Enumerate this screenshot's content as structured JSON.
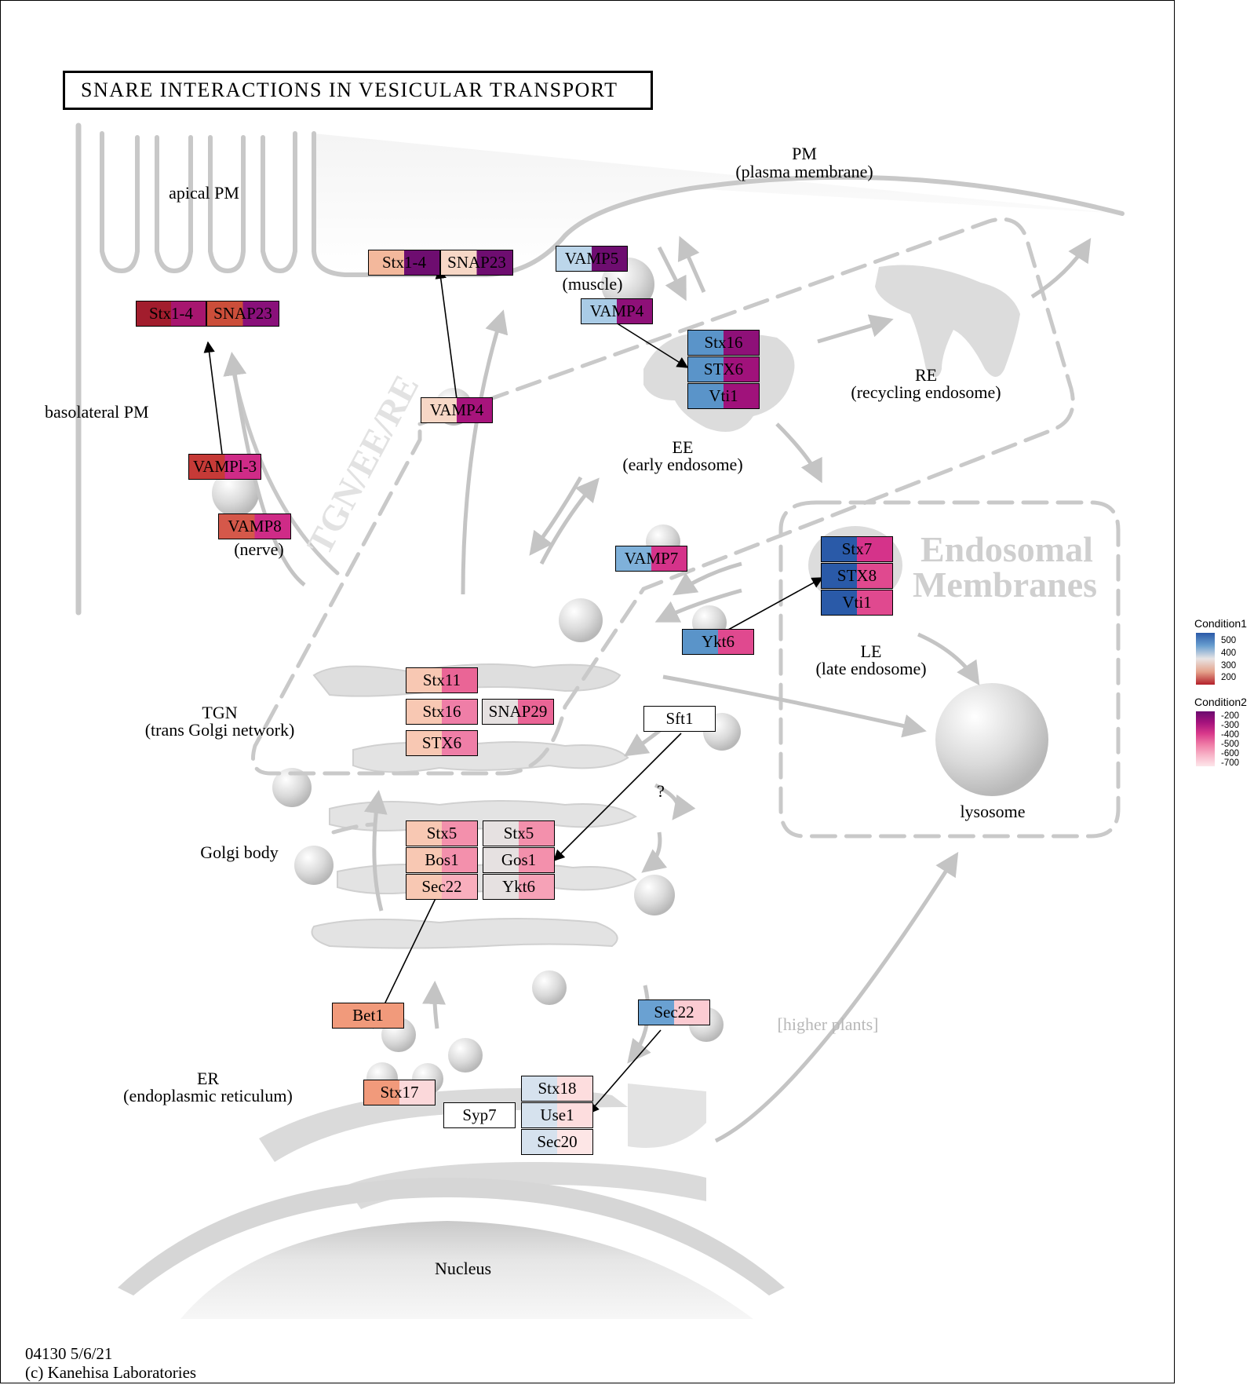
{
  "title": "SNARE INTERACTIONS IN VESICULAR TRANSPORT",
  "labels": {
    "pm": "PM",
    "pm_full": "(plasma membrane)",
    "apical_pm": "apical PM",
    "basolateral_pm": "basolateral PM",
    "muscle": "(muscle)",
    "nerve": "(nerve)",
    "re": "RE",
    "re_full": "(recycling endosome)",
    "ee": "EE",
    "ee_full": "(early endosome)",
    "tgn": "TGN",
    "tgn_full": "(trans Golgi network)",
    "le": "LE",
    "le_full": "(late endosome)",
    "lysosome": "lysosome",
    "golgi": "Golgi body",
    "er": "ER",
    "er_full": "(endoplasmic reticulum)",
    "nucleus": "Nucleus",
    "higher_plants": "[higher plants]",
    "question": "?",
    "endosomal_1": "Endosomal",
    "endosomal_2": "Membranes",
    "tgn_ee_re": "TGN/EE/RE"
  },
  "footer": {
    "line1": "04130 5/6/21",
    "line2": "(c) Kanehisa Laboratories"
  },
  "legend": {
    "condition1": {
      "title": "Condition1",
      "ticks": [
        "500",
        "400",
        "300",
        "200"
      ],
      "colors": [
        "#2a5aa8",
        "#6a9fd0",
        "#e8e4e4",
        "#e5a38c",
        "#b3202a"
      ]
    },
    "condition2": {
      "title": "Condition2",
      "ticks": [
        "-200",
        "-300",
        "-400",
        "-500",
        "-600",
        "-700"
      ],
      "colors": [
        "#6b0b6e",
        "#a4127c",
        "#d8388a",
        "#ef7ba6",
        "#f8b5c9",
        "#fde6ea"
      ]
    }
  },
  "genes": [
    {
      "label": "Stx1-4",
      "c1": "#a21d2d",
      "c2": "#a7166f"
    },
    {
      "label": "SNAP23",
      "c1": "#cc4e3a",
      "c2": "#89107a"
    },
    {
      "label": "Stx1-4",
      "c1": "#f3b89c",
      "c2": "#6e0d70"
    },
    {
      "label": "SNAP23",
      "c1": "#f7d7c6",
      "c2": "#6e0d70"
    },
    {
      "label": "VAMP5",
      "c1": "#bcd6ea",
      "c2": "#6e0d70"
    },
    {
      "label": "VAMP4",
      "c1": "#a9cbe6",
      "c2": "#8e1078"
    },
    {
      "label": "Stx16",
      "c1": "#5a94c9",
      "c2": "#8e1078"
    },
    {
      "label": "STX6",
      "c1": "#5a94c9",
      "c2": "#a0127b"
    },
    {
      "label": "Vti1",
      "c1": "#5a94c9",
      "c2": "#a0127b"
    },
    {
      "label": "VAMP4",
      "c1": "#f7d7c6",
      "c2": "#a7147c"
    },
    {
      "label": "VAMPl-3",
      "c1": "#c63a37",
      "c2": "#cf2b87"
    },
    {
      "label": "VAMP8",
      "c1": "#d5584a",
      "c2": "#cf2b87"
    },
    {
      "label": "VAMP7",
      "c1": "#7fb1da",
      "c2": "#d5338a"
    },
    {
      "label": "Stx7",
      "c1": "#2a5aa8",
      "c2": "#d5338a"
    },
    {
      "label": "STX8",
      "c1": "#2a5aa8",
      "c2": "#e0498f"
    },
    {
      "label": "Vti1",
      "c1": "#2a5aa8",
      "c2": "#e0498f"
    },
    {
      "label": "Ykt6",
      "c1": "#5a94c9",
      "c2": "#e0498f"
    },
    {
      "label": "Stx11",
      "c1": "#f8c8b3",
      "c2": "#ea6596"
    },
    {
      "label": "Stx16",
      "c1": "#f8c8b3",
      "c2": "#ef7ea7"
    },
    {
      "label": "SNAP29",
      "c1": "#e6e1e1",
      "c2": "#ea6596"
    },
    {
      "label": "STX6",
      "c1": "#f8c8b3",
      "c2": "#ef7ea7"
    },
    {
      "label": "Sft1",
      "c1": "#ffffff",
      "c2": "#ffffff"
    },
    {
      "label": "Stx5",
      "c1": "#f8c8b3",
      "c2": "#f390ac"
    },
    {
      "label": "Bos1",
      "c1": "#f8c8b3",
      "c2": "#f390ac"
    },
    {
      "label": "Sec22",
      "c1": "#f8c8b3",
      "c2": "#f9aebd"
    },
    {
      "label": "Stx5",
      "c1": "#e6e1e1",
      "c2": "#f390ac"
    },
    {
      "label": "Gos1",
      "c1": "#e6e1e1",
      "c2": "#f390ac"
    },
    {
      "label": "Ykt6",
      "c1": "#e6e1e1",
      "c2": "#f6a2b7"
    },
    {
      "label": "Bet1",
      "c1": "#f19a7b",
      "c2": "#f19a7b"
    },
    {
      "label": "Sec22",
      "c1": "#6aa1d2",
      "c2": "#fbcbd2"
    },
    {
      "label": "Stx17",
      "c1": "#f19a7b",
      "c2": "#fbd8da"
    },
    {
      "label": "Syp7",
      "c1": "#ffffff",
      "c2": "#ffffff"
    },
    {
      "label": "Stx18",
      "c1": "#d6e2ee",
      "c2": "#fdddde"
    },
    {
      "label": "Use1",
      "c1": "#d6e2ee",
      "c2": "#fdddde"
    },
    {
      "label": "Sec20",
      "c1": "#d6e2ee",
      "c2": "#fde6e6"
    }
  ]
}
